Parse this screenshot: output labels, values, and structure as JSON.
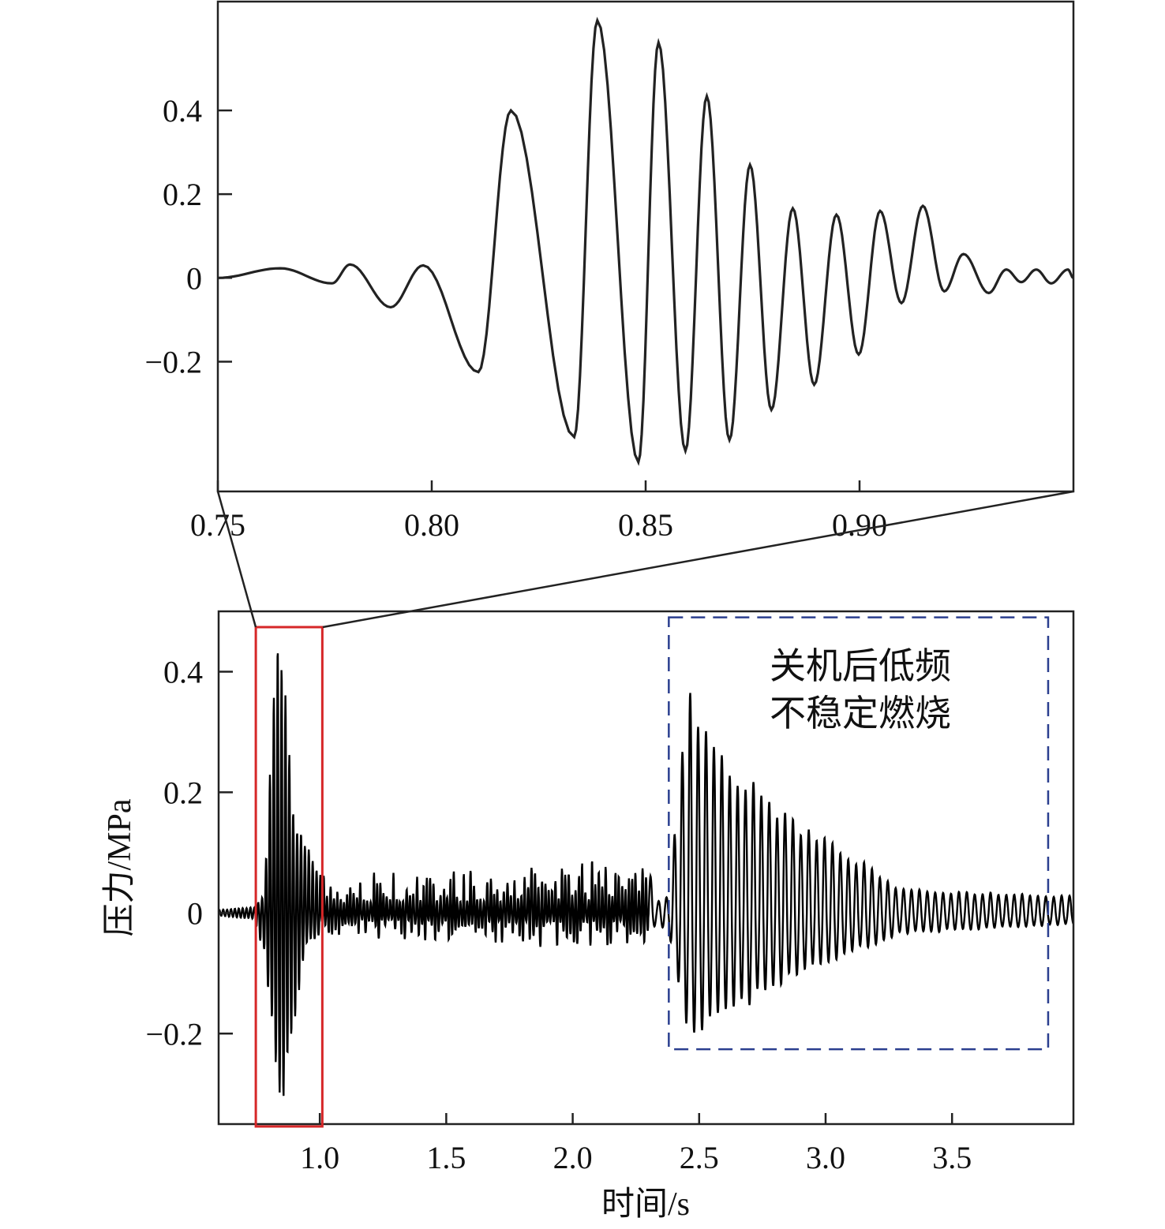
{
  "chart_data": [
    {
      "type": "line",
      "panel": "zoom-inset",
      "xlim": [
        0.75,
        0.95
      ],
      "ylim": [
        -0.51,
        0.66
      ],
      "xticks": [
        0.75,
        0.8,
        0.85,
        0.9
      ],
      "xtick_labels": [
        "0.75",
        "0.80",
        "0.85",
        "0.90"
      ],
      "yticks": [
        -0.2,
        0,
        0.2,
        0.4
      ],
      "ytick_labels": [
        "−0.2",
        "0",
        "0.2",
        "0.4"
      ],
      "grid": false,
      "line_color": "#222222",
      "extrema_points": [
        [
          0.75,
          0
        ],
        [
          0.7646,
          0.023
        ],
        [
          0.7767,
          -0.013
        ],
        [
          0.7809,
          0.032
        ],
        [
          0.7904,
          -0.07
        ],
        [
          0.798,
          0.03
        ],
        [
          0.8109,
          -0.225
        ],
        [
          0.8185,
          0.4
        ],
        [
          0.8333,
          -0.38
        ],
        [
          0.8387,
          0.615
        ],
        [
          0.8483,
          -0.44
        ],
        [
          0.853,
          0.562
        ],
        [
          0.8593,
          -0.413
        ],
        [
          0.8643,
          0.434
        ],
        [
          0.8696,
          -0.387
        ],
        [
          0.8744,
          0.27
        ],
        [
          0.8794,
          -0.315
        ],
        [
          0.8844,
          0.166
        ],
        [
          0.8894,
          -0.255
        ],
        [
          0.8946,
          0.151
        ],
        [
          0.8998,
          -0.183
        ],
        [
          0.9048,
          0.16
        ],
        [
          0.9098,
          -0.06
        ],
        [
          0.9148,
          0.172
        ],
        [
          0.9198,
          -0.032
        ],
        [
          0.9243,
          0.057
        ],
        [
          0.9302,
          -0.036
        ],
        [
          0.9343,
          0.02
        ],
        [
          0.9378,
          -0.01
        ],
        [
          0.9413,
          0.02
        ],
        [
          0.9448,
          -0.013
        ],
        [
          0.9487,
          0.02
        ],
        [
          0.95,
          0
        ]
      ]
    },
    {
      "type": "line",
      "panel": "full-record",
      "xlabel": "时间/s",
      "ylabel": "压力/MPa",
      "xlim": [
        0.6,
        3.98
      ],
      "ylim": [
        -0.35,
        0.5
      ],
      "xticks": [
        1.0,
        1.5,
        2.0,
        2.5,
        3.0,
        3.5
      ],
      "xtick_labels": [
        "1.0",
        "1.5",
        "2.0",
        "2.5",
        "3.0",
        "3.5"
      ],
      "yticks": [
        -0.2,
        0,
        0.2,
        0.4
      ],
      "ytick_labels": [
        "−0.2",
        "0",
        "0.2",
        "0.4"
      ],
      "grid": false,
      "line_color": "#000000",
      "envelope": [
        [
          0.6,
          0.005,
          -0.005
        ],
        [
          0.74,
          0.01,
          -0.01
        ],
        [
          0.78,
          0.03,
          -0.07
        ],
        [
          0.82,
          0.4,
          -0.22
        ],
        [
          0.84,
          0.47,
          -0.33
        ],
        [
          0.86,
          0.43,
          -0.31
        ],
        [
          0.9,
          0.15,
          -0.18
        ],
        [
          0.95,
          0.12,
          -0.05
        ],
        [
          1.0,
          0.07,
          -0.04
        ],
        [
          1.5,
          0.07,
          -0.05
        ],
        [
          2.0,
          0.09,
          -0.06
        ],
        [
          2.3,
          0.08,
          -0.05
        ],
        [
          2.33,
          0.02,
          -0.02
        ],
        [
          2.38,
          0.03,
          -0.03
        ],
        [
          2.45,
          0.4,
          -0.21
        ],
        [
          2.6,
          0.26,
          -0.18
        ],
        [
          2.9,
          0.15,
          -0.1
        ],
        [
          3.1,
          0.1,
          -0.07
        ],
        [
          3.3,
          0.04,
          -0.035
        ],
        [
          3.98,
          0.03,
          -0.02
        ]
      ],
      "broadband_noise_range": [
        1.0,
        2.3
      ],
      "highlight_box": {
        "x_range": [
          0.747,
          1.01
        ],
        "color": "#d62728",
        "style": "solid"
      },
      "annotation_box": {
        "x_range": [
          2.38,
          3.88
        ],
        "y_range": [
          -0.226,
          0.49
        ],
        "color": "#2b3f8f",
        "style": "dashed"
      },
      "annotation_lines": [
        "关机后低频",
        "不稳定燃烧"
      ]
    }
  ]
}
